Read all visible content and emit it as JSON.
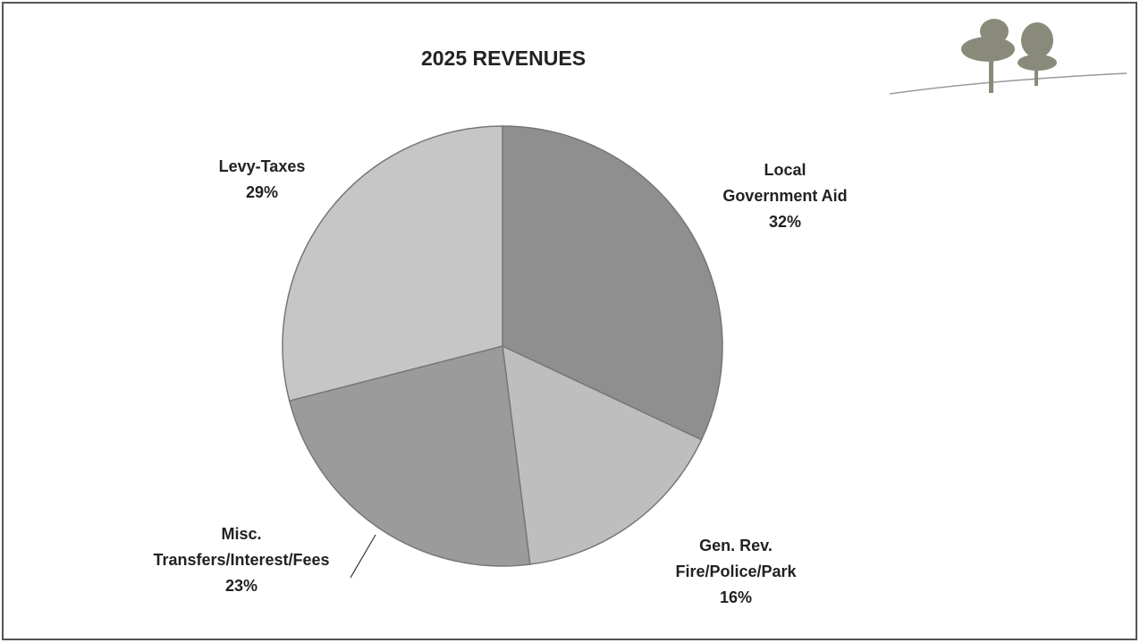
{
  "chart_data": {
    "type": "pie",
    "title": "2025 REVENUES",
    "categories": [
      "Local\nGovernment Aid",
      "Gen. Rev.\nFire/Police/Park",
      "Misc.\nTransfers/Interest/Fees",
      "Levy-Taxes"
    ],
    "values": [
      32,
      16,
      23,
      29
    ],
    "value_labels": [
      "32%",
      "16%",
      "23%",
      "29%"
    ],
    "colors": [
      "#8f8f8f",
      "#bebebe",
      "#9b9b9b",
      "#c6c6c6"
    ]
  }
}
